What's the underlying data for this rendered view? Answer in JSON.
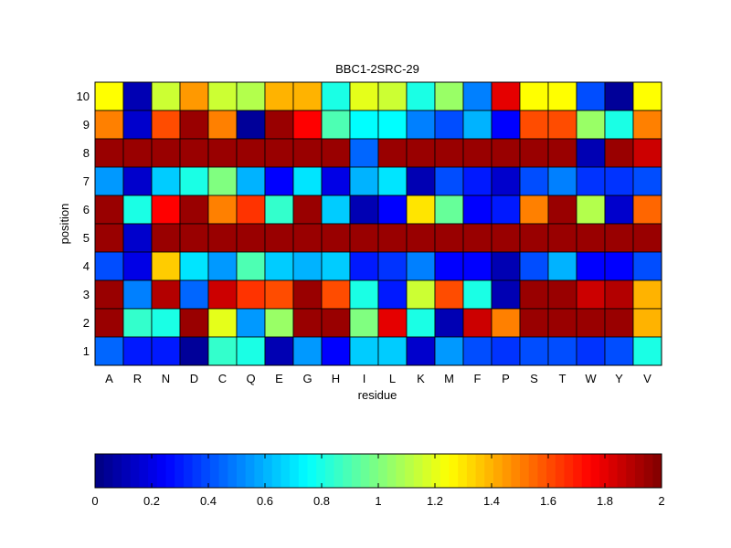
{
  "chart_data": {
    "type": "heatmap",
    "title": "BBC1-2SRC-29",
    "xlabel": "residue",
    "ylabel": "position",
    "x_categories": [
      "A",
      "R",
      "N",
      "D",
      "C",
      "Q",
      "E",
      "G",
      "H",
      "I",
      "L",
      "K",
      "M",
      "F",
      "P",
      "S",
      "T",
      "W",
      "Y",
      "V"
    ],
    "y_categories": [
      "1",
      "2",
      "3",
      "4",
      "5",
      "6",
      "7",
      "8",
      "9",
      "10"
    ],
    "colormap": "jet",
    "value_range": [
      0,
      2
    ],
    "colorbar": {
      "orientation": "horizontal",
      "placement": "bottom",
      "ticks": [
        "0",
        "0.2",
        "0.4",
        "0.6",
        "0.8",
        "1",
        "1.2",
        "1.4",
        "1.6",
        "1.8",
        "2"
      ]
    },
    "grid": true,
    "rows": [
      {
        "position": "10",
        "values": [
          1.25,
          0.1,
          1.15,
          1.45,
          1.15,
          1.1,
          1.4,
          1.4,
          0.8,
          1.2,
          1.15,
          0.8,
          1.05,
          0.5,
          1.8,
          1.25,
          1.25,
          0.4,
          0.05,
          1.25
        ]
      },
      {
        "position": "9",
        "values": [
          1.5,
          0.15,
          1.6,
          1.95,
          1.5,
          0.05,
          1.95,
          1.75,
          0.9,
          0.75,
          0.75,
          0.5,
          0.4,
          0.6,
          0.25,
          1.6,
          1.6,
          1.05,
          0.8,
          1.5
        ]
      },
      {
        "position": "8",
        "values": [
          1.95,
          1.95,
          1.95,
          1.95,
          1.95,
          1.95,
          1.95,
          1.95,
          1.95,
          0.45,
          1.95,
          1.95,
          1.95,
          1.95,
          1.95,
          1.95,
          1.95,
          0.1,
          1.95,
          1.85
        ]
      },
      {
        "position": "7",
        "values": [
          0.55,
          0.15,
          0.65,
          0.8,
          1.0,
          0.6,
          0.25,
          0.7,
          0.2,
          0.6,
          0.7,
          0.1,
          0.4,
          0.3,
          0.15,
          0.4,
          0.5,
          0.35,
          0.35,
          0.4
        ]
      },
      {
        "position": "6",
        "values": [
          1.95,
          0.8,
          1.75,
          1.95,
          1.5,
          1.65,
          0.85,
          1.95,
          0.65,
          0.1,
          0.25,
          1.3,
          0.95,
          0.25,
          0.3,
          1.5,
          1.95,
          1.1,
          0.15,
          1.55
        ]
      },
      {
        "position": "5",
        "values": [
          1.95,
          0.15,
          1.95,
          1.95,
          1.95,
          1.95,
          1.95,
          1.95,
          1.95,
          1.95,
          1.95,
          1.95,
          1.95,
          1.95,
          1.95,
          1.95,
          1.95,
          1.95,
          1.95,
          1.95
        ]
      },
      {
        "position": "4",
        "values": [
          0.4,
          0.2,
          1.35,
          0.7,
          0.55,
          0.9,
          0.65,
          0.6,
          0.65,
          0.3,
          0.35,
          0.5,
          0.25,
          0.25,
          0.1,
          0.4,
          0.6,
          0.25,
          0.25,
          0.4
        ]
      },
      {
        "position": "3",
        "values": [
          1.95,
          0.5,
          1.9,
          0.45,
          1.85,
          1.65,
          1.6,
          1.95,
          1.6,
          0.8,
          0.3,
          1.15,
          1.6,
          0.8,
          0.1,
          1.95,
          1.95,
          1.85,
          1.9,
          1.4
        ]
      },
      {
        "position": "2",
        "values": [
          1.95,
          0.85,
          0.8,
          1.95,
          1.2,
          0.55,
          1.05,
          1.95,
          1.95,
          1.0,
          1.8,
          0.8,
          0.1,
          1.85,
          1.5,
          1.95,
          1.95,
          1.95,
          1.95,
          1.4
        ]
      },
      {
        "position": "1",
        "values": [
          0.45,
          0.3,
          0.3,
          0.05,
          0.85,
          0.8,
          0.1,
          0.55,
          0.25,
          0.65,
          0.65,
          0.15,
          0.55,
          0.4,
          0.35,
          0.4,
          0.4,
          0.35,
          0.4,
          0.8
        ]
      }
    ]
  }
}
